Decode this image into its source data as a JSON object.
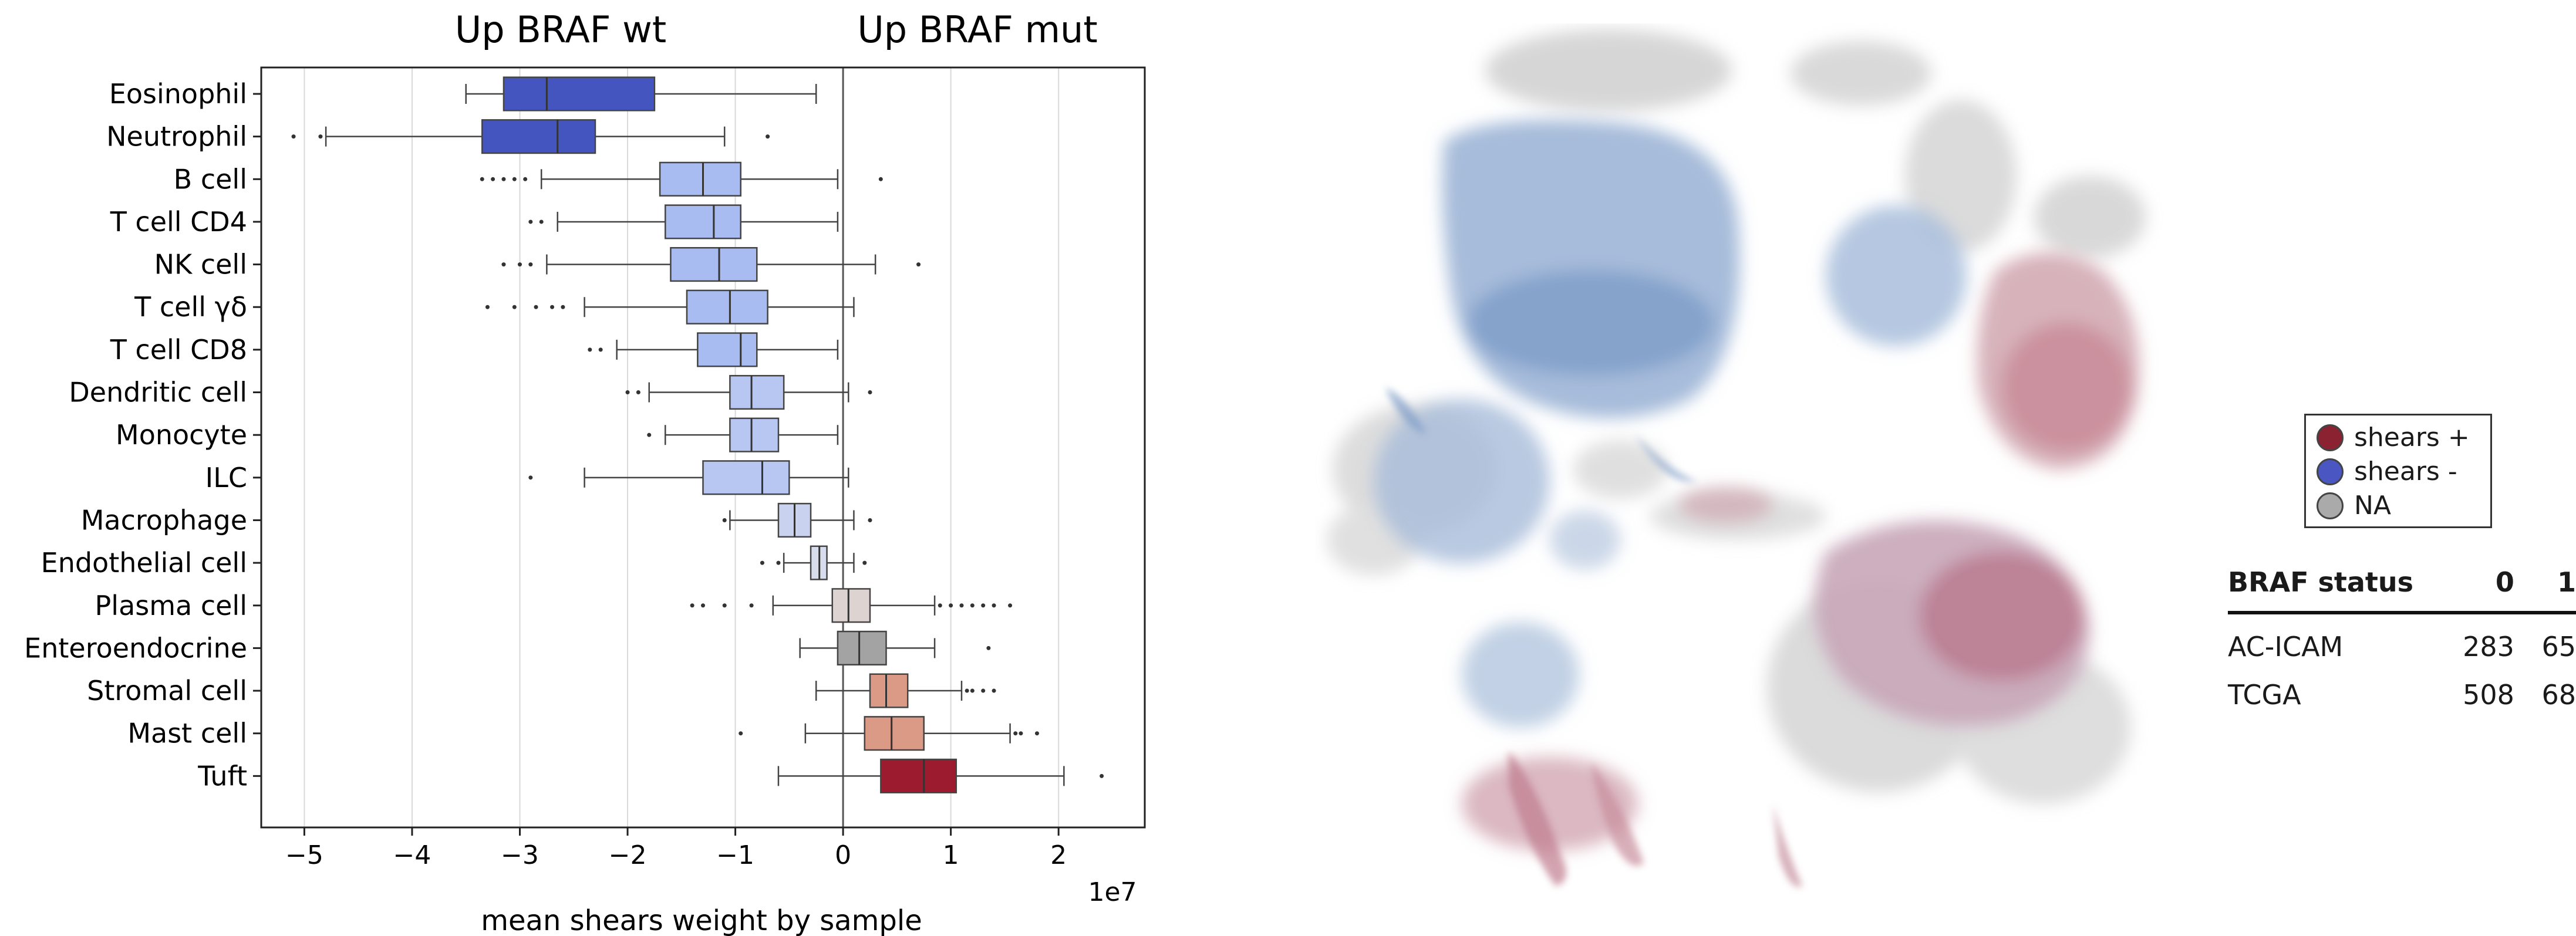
{
  "chart_data": [
    {
      "type": "box",
      "title_left": "Up BRAF wt",
      "title_right": "Up BRAF mut",
      "xlabel": "mean shears weight by sample",
      "x_offset_label": "1e7",
      "xlim": [
        -5.4,
        2.8
      ],
      "xticks": [
        -5,
        -4,
        -3,
        -2,
        -1,
        0,
        1,
        2
      ],
      "xtick_labels": [
        "−5",
        "−4",
        "−3",
        "−2",
        "−1",
        "0",
        "1",
        "2"
      ],
      "grid": "vertical",
      "categories": [
        "Eosinophil",
        "Neutrophil",
        "B cell",
        "T cell CD4",
        "NK cell",
        "T cell γδ",
        "T cell CD8",
        "Dendritic cell",
        "Monocyte",
        "ILC",
        "Macrophage",
        "Endothelial cell",
        "Plasma cell",
        "Enteroendocrine",
        "Stromal cell",
        "Mast cell",
        "Tuft"
      ],
      "boxes": [
        {
          "q1": -3.15,
          "median": -2.75,
          "q3": -1.75,
          "whisker_low": -3.5,
          "whisker_high": -0.25,
          "color": "#4455c0",
          "outliers": []
        },
        {
          "q1": -3.35,
          "median": -2.65,
          "q3": -2.3,
          "whisker_low": -4.8,
          "whisker_high": -1.1,
          "color": "#4455c0",
          "outliers": [
            -5.1,
            -4.85,
            -0.7
          ]
        },
        {
          "q1": -1.7,
          "median": -1.3,
          "q3": -0.95,
          "whisker_low": -2.8,
          "whisker_high": -0.05,
          "color": "#a9bcf2",
          "outliers": [
            -3.35,
            -3.25,
            -3.15,
            -3.05,
            -2.95,
            0.35
          ]
        },
        {
          "q1": -1.65,
          "median": -1.2,
          "q3": -0.95,
          "whisker_low": -2.65,
          "whisker_high": -0.05,
          "color": "#a9bcf2",
          "outliers": [
            -2.9,
            -2.8
          ]
        },
        {
          "q1": -1.6,
          "median": -1.15,
          "q3": -0.8,
          "whisker_low": -2.75,
          "whisker_high": 0.3,
          "color": "#a9bcf2",
          "outliers": [
            -3.15,
            -3.0,
            -2.9,
            0.7
          ]
        },
        {
          "q1": -1.45,
          "median": -1.05,
          "q3": -0.7,
          "whisker_low": -2.4,
          "whisker_high": 0.1,
          "color": "#a9bcf2",
          "outliers": [
            -3.3,
            -3.05,
            -2.85,
            -2.7,
            -2.6
          ]
        },
        {
          "q1": -1.35,
          "median": -0.95,
          "q3": -0.8,
          "whisker_low": -2.1,
          "whisker_high": -0.05,
          "color": "#a9bcf2",
          "outliers": [
            -2.35,
            -2.25
          ]
        },
        {
          "q1": -1.05,
          "median": -0.85,
          "q3": -0.55,
          "whisker_low": -1.8,
          "whisker_high": 0.05,
          "color": "#b7c7f2",
          "outliers": [
            -2.0,
            -1.9,
            0.25
          ]
        },
        {
          "q1": -1.05,
          "median": -0.85,
          "q3": -0.6,
          "whisker_low": -1.65,
          "whisker_high": -0.05,
          "color": "#b7c7f2",
          "outliers": [
            -1.8
          ]
        },
        {
          "q1": -1.3,
          "median": -0.75,
          "q3": -0.5,
          "whisker_low": -2.4,
          "whisker_high": 0.05,
          "color": "#b7c7f2",
          "outliers": [
            -2.9
          ]
        },
        {
          "q1": -0.6,
          "median": -0.45,
          "q3": -0.3,
          "whisker_low": -1.05,
          "whisker_high": 0.1,
          "color": "#c9d3ef",
          "outliers": [
            -1.1,
            0.25
          ]
        },
        {
          "q1": -0.3,
          "median": -0.22,
          "q3": -0.15,
          "whisker_low": -0.55,
          "whisker_high": 0.1,
          "color": "#d8ddee",
          "outliers": [
            -0.75,
            -0.6,
            0.2
          ]
        },
        {
          "q1": -0.1,
          "median": 0.05,
          "q3": 0.25,
          "whisker_low": -0.65,
          "whisker_high": 0.85,
          "color": "#ddd4d2",
          "outliers": [
            -1.4,
            -1.3,
            -1.1,
            -0.85,
            0.9,
            1.0,
            1.1,
            1.2,
            1.3,
            1.4,
            1.55
          ]
        },
        {
          "q1": -0.05,
          "median": 0.15,
          "q3": 0.4,
          "whisker_low": -0.4,
          "whisker_high": 0.85,
          "color": "#a3a3a3",
          "outliers": [
            1.35
          ]
        },
        {
          "q1": 0.25,
          "median": 0.4,
          "q3": 0.6,
          "whisker_low": -0.25,
          "whisker_high": 1.1,
          "color": "#db9a86",
          "outliers": [
            1.15,
            1.2,
            1.3,
            1.4
          ]
        },
        {
          "q1": 0.2,
          "median": 0.45,
          "q3": 0.75,
          "whisker_low": -0.35,
          "whisker_high": 1.55,
          "color": "#db9a86",
          "outliers": [
            -0.95,
            1.6,
            1.65,
            1.8
          ]
        },
        {
          "q1": 0.35,
          "median": 0.75,
          "q3": 1.05,
          "whisker_low": -0.6,
          "whisker_high": 2.05,
          "color": "#9c1b2e",
          "outliers": [
            2.4
          ]
        }
      ]
    },
    {
      "type": "scatter",
      "subtype": "umap-embedding",
      "legend": [
        {
          "label": "shears +",
          "color": "#8b2232"
        },
        {
          "label": "shears -",
          "color": "#4a57c2"
        },
        {
          "label": "NA",
          "color": "#aaaaaa"
        }
      ],
      "legend_placement": "right"
    }
  ],
  "table": {
    "headers": [
      "BRAF status",
      "0",
      "1"
    ],
    "rows": [
      [
        "AC-ICAM",
        "283",
        "65"
      ],
      [
        "TCGA",
        "508",
        "68"
      ]
    ]
  }
}
